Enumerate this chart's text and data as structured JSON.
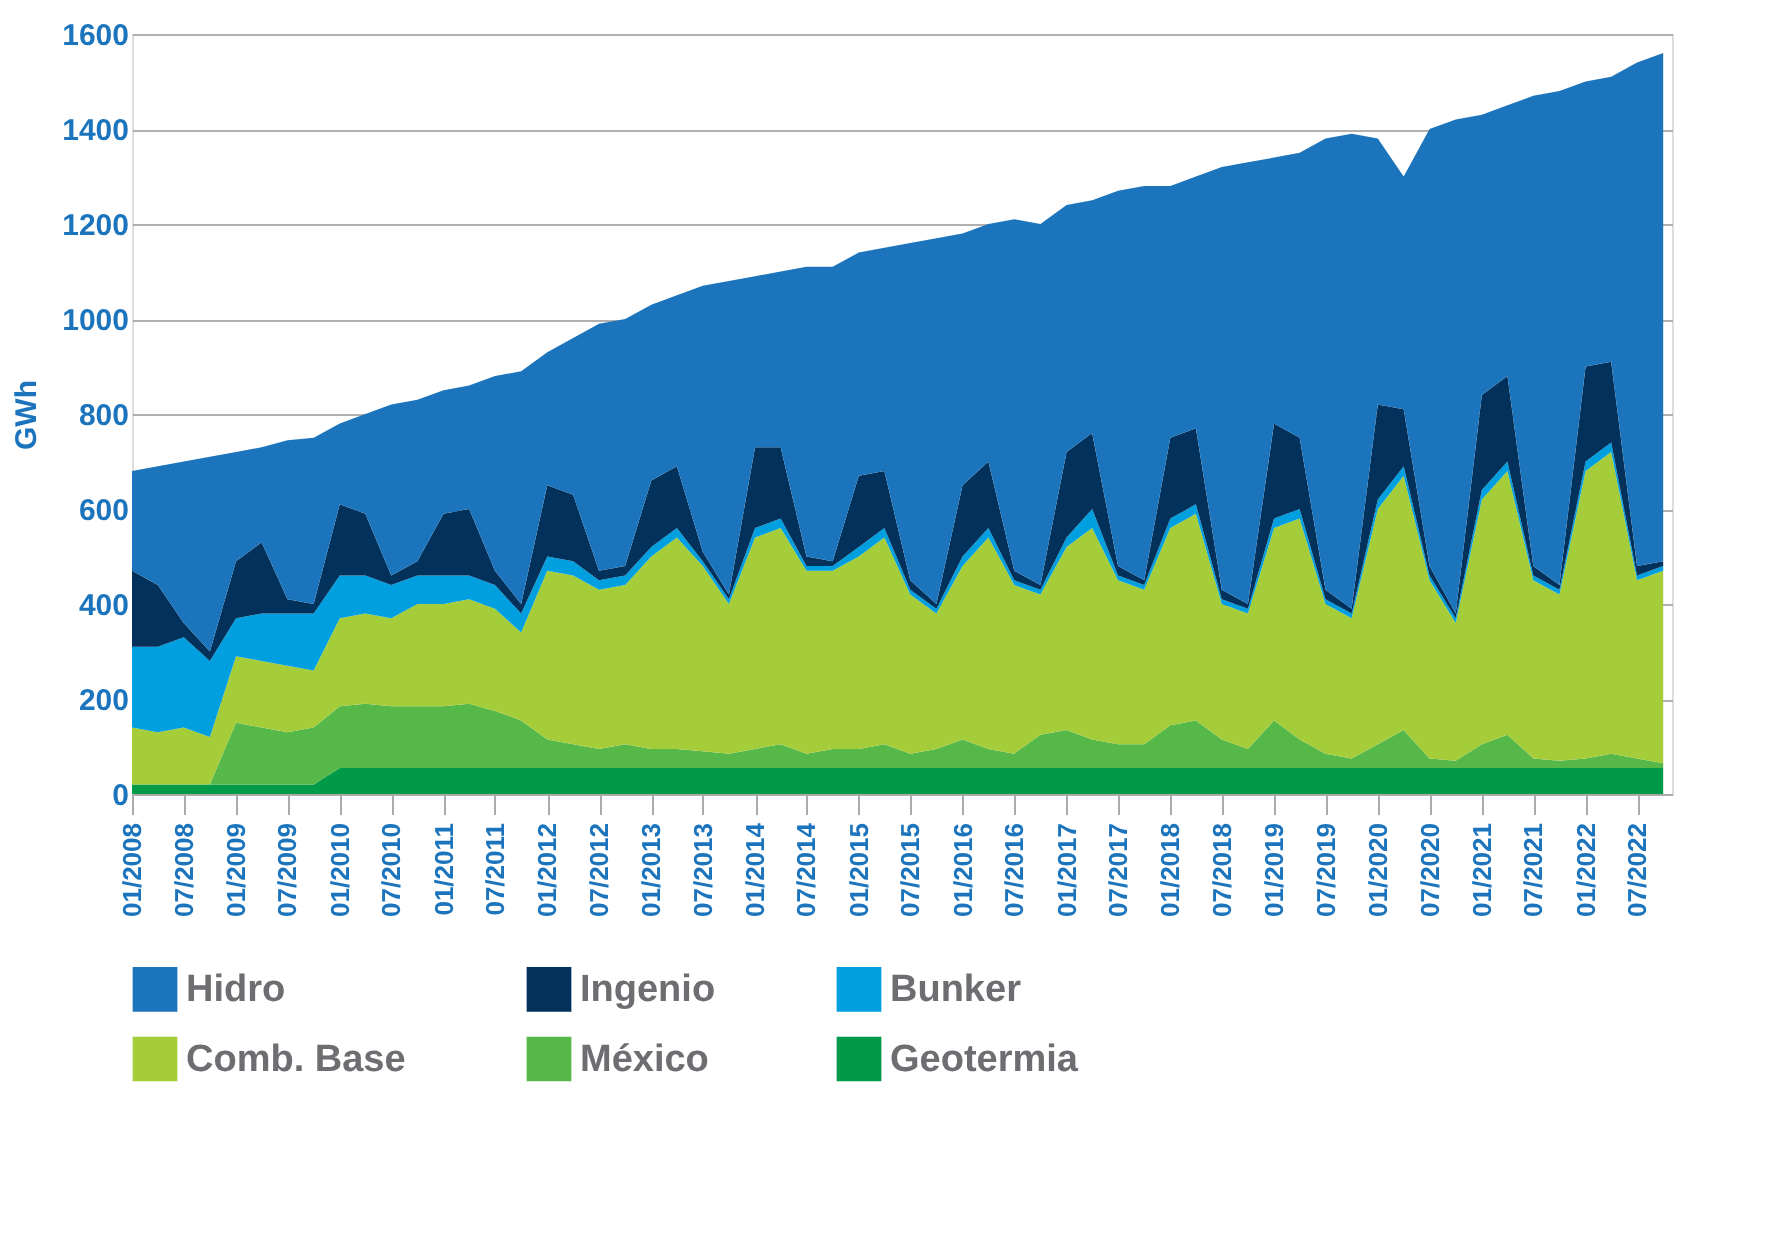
{
  "chart_data": {
    "type": "area",
    "stacked": true,
    "ylabel": "GWh",
    "ylim": [
      0,
      1600
    ],
    "yticks": [
      0,
      200,
      400,
      600,
      800,
      1000,
      1200,
      1400,
      1600
    ],
    "grid": "y",
    "legend": "bottom",
    "xlim": [
      "2008-01",
      "2022-11"
    ],
    "xticks": [
      {
        "value": "2008-01",
        "label": "01/2008"
      },
      {
        "value": "2008-07",
        "label": "07/2008"
      },
      {
        "value": "2009-01",
        "label": "01/2009"
      },
      {
        "value": "2009-07",
        "label": "07/2009"
      },
      {
        "value": "2010-01",
        "label": "01/2010"
      },
      {
        "value": "2010-07",
        "label": "07/2010"
      },
      {
        "value": "2011-01",
        "label": "01/2011"
      },
      {
        "value": "2011-07",
        "label": "07/2011"
      },
      {
        "value": "2012-01",
        "label": "01/2012"
      },
      {
        "value": "2012-07",
        "label": "07/2012"
      },
      {
        "value": "2013-01",
        "label": "01/2013"
      },
      {
        "value": "2013-07",
        "label": "07/2013"
      },
      {
        "value": "2014-01",
        "label": "01/2014"
      },
      {
        "value": "2014-07",
        "label": "07/2014"
      },
      {
        "value": "2015-01",
        "label": "01/2015"
      },
      {
        "value": "2015-07",
        "label": "07/2015"
      },
      {
        "value": "2016-01",
        "label": "01/2016"
      },
      {
        "value": "2016-07",
        "label": "07/2016"
      },
      {
        "value": "2017-01",
        "label": "01/2017"
      },
      {
        "value": "2017-07",
        "label": "07/2017"
      },
      {
        "value": "2018-01",
        "label": "01/2018"
      },
      {
        "value": "2018-07",
        "label": "07/2018"
      },
      {
        "value": "2019-01",
        "label": "01/2019"
      },
      {
        "value": "2019-07",
        "label": "07/2019"
      },
      {
        "value": "2020-01",
        "label": "01/2020"
      },
      {
        "value": "2020-07",
        "label": "07/2020"
      },
      {
        "value": "2021-01",
        "label": "01/2021"
      },
      {
        "value": "2021-07",
        "label": "07/2021"
      },
      {
        "value": "2022-01",
        "label": "01/2022"
      },
      {
        "value": "2022-07",
        "label": "07/2022"
      }
    ],
    "x": [
      "2008-01",
      "2008-04",
      "2008-07",
      "2008-10",
      "2009-01",
      "2009-04",
      "2009-07",
      "2009-10",
      "2010-01",
      "2010-04",
      "2010-07",
      "2010-10",
      "2011-01",
      "2011-04",
      "2011-07",
      "2011-10",
      "2012-01",
      "2012-04",
      "2012-07",
      "2012-10",
      "2013-01",
      "2013-04",
      "2013-07",
      "2013-10",
      "2014-01",
      "2014-04",
      "2014-07",
      "2014-10",
      "2015-01",
      "2015-04",
      "2015-07",
      "2015-10",
      "2016-01",
      "2016-04",
      "2016-07",
      "2016-10",
      "2017-01",
      "2017-04",
      "2017-07",
      "2017-10",
      "2018-01",
      "2018-04",
      "2018-07",
      "2018-10",
      "2019-01",
      "2019-04",
      "2019-07",
      "2019-10",
      "2020-01",
      "2020-04",
      "2020-07",
      "2020-10",
      "2021-01",
      "2021-04",
      "2021-07",
      "2021-10",
      "2022-01",
      "2022-04",
      "2022-07",
      "2022-10"
    ],
    "series": [
      {
        "name": "Geotermia",
        "color": "#009a49",
        "values": [
          20,
          20,
          20,
          20,
          20,
          20,
          20,
          20,
          55,
          55,
          55,
          55,
          55,
          55,
          55,
          55,
          55,
          55,
          55,
          55,
          55,
          55,
          55,
          55,
          55,
          55,
          55,
          55,
          55,
          55,
          55,
          55,
          55,
          55,
          55,
          55,
          55,
          55,
          55,
          55,
          55,
          55,
          55,
          55,
          55,
          55,
          55,
          55,
          55,
          55,
          55,
          55,
          55,
          55,
          55,
          55,
          55,
          55,
          55,
          55
        ]
      },
      {
        "name": "México",
        "color": "#55b848",
        "values": [
          0,
          0,
          0,
          0,
          130,
          120,
          110,
          120,
          130,
          135,
          130,
          130,
          130,
          135,
          120,
          100,
          60,
          50,
          40,
          50,
          40,
          40,
          35,
          30,
          40,
          50,
          30,
          40,
          40,
          50,
          30,
          40,
          60,
          40,
          30,
          70,
          80,
          60,
          50,
          50,
          90,
          100,
          60,
          40,
          100,
          60,
          30,
          20,
          50,
          80,
          20,
          15,
          50,
          70,
          20,
          15,
          20,
          30,
          20,
          10
        ]
      },
      {
        "name": "Comb. Base",
        "color": "#a5cd39",
        "values": [
          120,
          110,
          120,
          100,
          140,
          140,
          140,
          120,
          185,
          190,
          185,
          215,
          215,
          220,
          215,
          185,
          355,
          355,
          335,
          335,
          405,
          445,
          390,
          315,
          445,
          455,
          385,
          375,
          405,
          435,
          335,
          285,
          365,
          445,
          355,
          295,
          385,
          445,
          345,
          325,
          415,
          435,
          285,
          285,
          405,
          465,
          315,
          295,
          495,
          535,
          375,
          290,
          515,
          555,
          375,
          350,
          605,
          635,
          375,
          405
        ]
      },
      {
        "name": "Bunker",
        "color": "#009fdf",
        "values": [
          170,
          180,
          190,
          160,
          80,
          100,
          110,
          120,
          90,
          80,
          70,
          60,
          60,
          50,
          50,
          40,
          30,
          30,
          20,
          20,
          20,
          20,
          10,
          10,
          20,
          20,
          10,
          10,
          20,
          20,
          10,
          10,
          20,
          20,
          10,
          10,
          20,
          40,
          10,
          10,
          20,
          20,
          10,
          10,
          20,
          20,
          10,
          10,
          20,
          20,
          10,
          10,
          20,
          20,
          10,
          10,
          20,
          20,
          10,
          10
        ]
      },
      {
        "name": "Ingenio",
        "color": "#02315c",
        "values": [
          160,
          130,
          30,
          20,
          120,
          150,
          30,
          20,
          150,
          130,
          20,
          30,
          130,
          140,
          30,
          20,
          150,
          140,
          20,
          20,
          140,
          130,
          20,
          10,
          170,
          150,
          20,
          10,
          150,
          120,
          20,
          10,
          150,
          140,
          20,
          10,
          180,
          160,
          20,
          10,
          170,
          160,
          20,
          10,
          200,
          150,
          20,
          10,
          200,
          120,
          20,
          10,
          200,
          180,
          20,
          10,
          200,
          170,
          20,
          10
        ]
      },
      {
        "name": "Hidro",
        "color": "#1c75bc",
        "values": [
          210,
          250,
          340,
          410,
          230,
          200,
          335,
          350,
          170,
          210,
          360,
          340,
          260,
          260,
          410,
          490,
          280,
          330,
          520,
          520,
          370,
          360,
          560,
          660,
          360,
          370,
          610,
          620,
          470,
          470,
          710,
          770,
          530,
          500,
          740,
          760,
          520,
          490,
          790,
          830,
          530,
          530,
          890,
          930,
          560,
          600,
          950,
          1000,
          560,
          490,
          920,
          1040,
          590,
          570,
          990,
          1040,
          600,
          600,
          1060,
          1070
        ]
      }
    ]
  }
}
